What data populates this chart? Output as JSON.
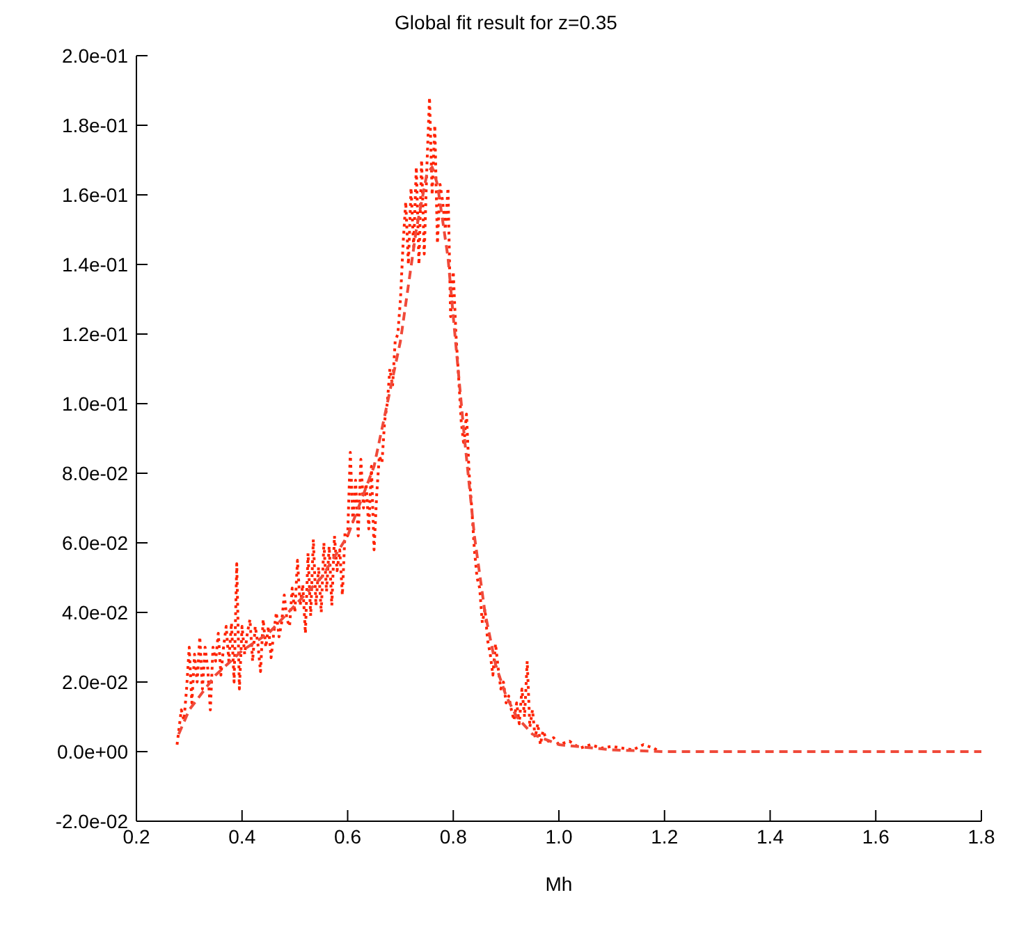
{
  "chart_data": {
    "type": "line",
    "title": "Global fit result for z=0.35",
    "xlabel": "Mh",
    "xlim": [
      0.2,
      1.8
    ],
    "xticks": [
      {
        "value": 0.2,
        "label": "0.2"
      },
      {
        "value": 0.4,
        "label": "0.4"
      },
      {
        "value": 0.6,
        "label": "0.6"
      },
      {
        "value": 0.8,
        "label": "0.8"
      },
      {
        "value": 1,
        "label": "1.0"
      },
      {
        "value": 1.2,
        "label": "1.2"
      },
      {
        "value": 1.4,
        "label": "1.4"
      },
      {
        "value": 1.6,
        "label": "1.6"
      },
      {
        "value": 1.8,
        "label": "1.8"
      }
    ],
    "ylim": [
      -0.02,
      0.2
    ],
    "yticks": [
      {
        "value": -0.02,
        "label": "-2.0e-02"
      },
      {
        "value": 0,
        "label": "0.0e+00"
      },
      {
        "value": 0.02,
        "label": "2.0e-02"
      },
      {
        "value": 0.04,
        "label": "4.0e-02"
      },
      {
        "value": 0.06,
        "label": "6.0e-02"
      },
      {
        "value": 0.08,
        "label": "8.0e-02"
      },
      {
        "value": 0.1,
        "label": "1.0e-01"
      },
      {
        "value": 0.12,
        "label": "1.2e-01"
      },
      {
        "value": 0.14,
        "label": "1.4e-01"
      },
      {
        "value": 0.16,
        "label": "1.6e-01"
      },
      {
        "value": 0.18,
        "label": "1.8e-01"
      },
      {
        "value": 0.2,
        "label": "2.0e-01"
      }
    ],
    "grid": false,
    "legend": false,
    "marker": "none",
    "series": [
      {
        "color": "#ff2200",
        "line_style": "dotted",
        "x": [
          0.277,
          0.285,
          0.29,
          0.295,
          0.3,
          0.305,
          0.31,
          0.315,
          0.32,
          0.325,
          0.33,
          0.335,
          0.34,
          0.345,
          0.35,
          0.355,
          0.36,
          0.365,
          0.37,
          0.375,
          0.38,
          0.385,
          0.39,
          0.395,
          0.4,
          0.405,
          0.41,
          0.415,
          0.42,
          0.425,
          0.43,
          0.435,
          0.44,
          0.445,
          0.45,
          0.455,
          0.46,
          0.465,
          0.47,
          0.475,
          0.48,
          0.485,
          0.49,
          0.495,
          0.5,
          0.505,
          0.51,
          0.515,
          0.52,
          0.525,
          0.53,
          0.535,
          0.54,
          0.545,
          0.55,
          0.555,
          0.56,
          0.565,
          0.57,
          0.575,
          0.58,
          0.585,
          0.59,
          0.595,
          0.6,
          0.605,
          0.61,
          0.615,
          0.62,
          0.625,
          0.63,
          0.635,
          0.64,
          0.645,
          0.65,
          0.655,
          0.66,
          0.665,
          0.67,
          0.675,
          0.68,
          0.685,
          0.69,
          0.695,
          0.7,
          0.705,
          0.71,
          0.715,
          0.72,
          0.725,
          0.73,
          0.735,
          0.74,
          0.745,
          0.75,
          0.755,
          0.76,
          0.765,
          0.77,
          0.775,
          0.78,
          0.785,
          0.79,
          0.795,
          0.8,
          0.805,
          0.81,
          0.815,
          0.82,
          0.825,
          0.83,
          0.835,
          0.84,
          0.845,
          0.85,
          0.855,
          0.86,
          0.865,
          0.87,
          0.875,
          0.88,
          0.885,
          0.89,
          0.895,
          0.9,
          0.905,
          0.91,
          0.915,
          0.92,
          0.925,
          0.93,
          0.935,
          0.94,
          0.945,
          0.95,
          0.955,
          0.96,
          0.965,
          0.97,
          0.975,
          0.98,
          0.99,
          1.0,
          1.02,
          1.04,
          1.06,
          1.08,
          1.1,
          1.12,
          1.14,
          1.16,
          1.18,
          1.19
        ],
        "values": [
          0.002,
          0.012,
          0.009,
          0.018,
          0.03,
          0.014,
          0.028,
          0.02,
          0.033,
          0.018,
          0.03,
          0.024,
          0.012,
          0.03,
          0.026,
          0.034,
          0.022,
          0.03,
          0.036,
          0.026,
          0.037,
          0.02,
          0.054,
          0.018,
          0.036,
          0.028,
          0.034,
          0.038,
          0.026,
          0.036,
          0.031,
          0.023,
          0.038,
          0.03,
          0.036,
          0.027,
          0.034,
          0.04,
          0.033,
          0.037,
          0.045,
          0.038,
          0.036,
          0.047,
          0.04,
          0.055,
          0.042,
          0.048,
          0.034,
          0.057,
          0.039,
          0.061,
          0.042,
          0.053,
          0.04,
          0.06,
          0.046,
          0.059,
          0.042,
          0.062,
          0.052,
          0.058,
          0.045,
          0.063,
          0.062,
          0.086,
          0.066,
          0.078,
          0.062,
          0.084,
          0.07,
          0.077,
          0.064,
          0.082,
          0.058,
          0.074,
          0.085,
          0.083,
          0.095,
          0.1,
          0.11,
          0.105,
          0.118,
          0.12,
          0.13,
          0.146,
          0.158,
          0.14,
          0.162,
          0.145,
          0.168,
          0.14,
          0.17,
          0.143,
          0.168,
          0.188,
          0.16,
          0.18,
          0.146,
          0.163,
          0.158,
          0.15,
          0.162,
          0.125,
          0.138,
          0.12,
          0.108,
          0.095,
          0.088,
          0.097,
          0.08,
          0.07,
          0.058,
          0.05,
          0.047,
          0.037,
          0.041,
          0.032,
          0.028,
          0.022,
          0.031,
          0.024,
          0.018,
          0.02,
          0.014,
          0.016,
          0.012,
          0.009,
          0.014,
          0.008,
          0.018,
          0.01,
          0.026,
          0.007,
          0.012,
          0.004,
          0.008,
          0.002,
          0.006,
          0.004,
          0.003,
          0.004,
          0.002,
          0.003,
          0.001,
          0.002,
          0.001,
          0.0015,
          0.001,
          0.0005,
          0.002,
          0.001,
          0.0
        ]
      },
      {
        "color": "#f04a3a",
        "line_style": "dashed",
        "x": [
          0.28,
          0.3,
          0.35,
          0.4,
          0.45,
          0.5,
          0.55,
          0.6,
          0.65,
          0.7,
          0.73,
          0.75,
          0.76,
          0.77,
          0.79,
          0.8,
          0.82,
          0.84,
          0.86,
          0.88,
          0.9,
          0.92,
          0.95,
          1.0,
          1.1,
          1.2,
          1.4,
          1.6,
          1.8
        ],
        "values": [
          0.005,
          0.012,
          0.022,
          0.029,
          0.034,
          0.042,
          0.05,
          0.062,
          0.082,
          0.118,
          0.15,
          0.166,
          0.168,
          0.163,
          0.142,
          0.125,
          0.092,
          0.062,
          0.04,
          0.025,
          0.016,
          0.01,
          0.005,
          0.002,
          0.0005,
          0,
          0,
          0,
          0
        ]
      }
    ]
  }
}
